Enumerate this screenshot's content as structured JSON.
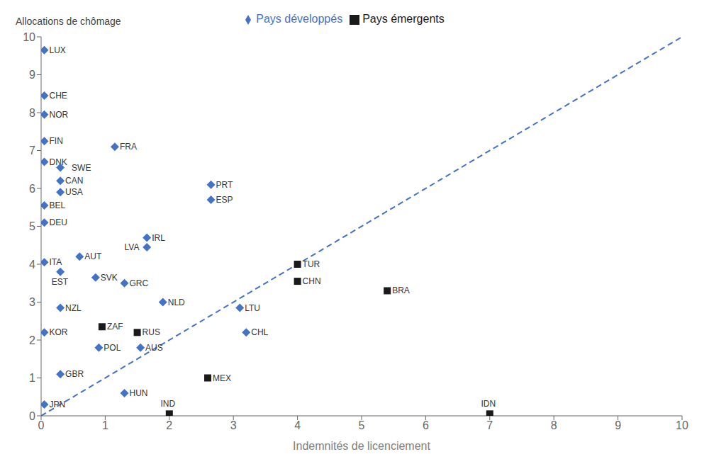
{
  "chart_data": {
    "type": "scatter",
    "xlabel": "Indemnités de licenciement",
    "ylabel": "Allocations de chômage",
    "series": [
      {
        "name": "Pays développés",
        "color": "#4472C4",
        "marker": "diamond",
        "labels": [
          "LUX",
          "CHE",
          "NOR",
          "FIN",
          "FRA",
          "DNK",
          "SWE",
          "CAN",
          "USA",
          "BEL",
          "DEU",
          "IRL",
          "LVA",
          "AUT",
          "ITA",
          "EST",
          "SVK",
          "GRC",
          "NLD",
          "NZL",
          "KOR",
          "POL",
          "GBR",
          "HUN",
          "JPN",
          "PRT",
          "ESP",
          "LTU",
          "CHL",
          "AUS"
        ],
        "x": [
          0.05,
          0.05,
          0.05,
          0.05,
          1.15,
          0.05,
          0.3,
          0.3,
          0.3,
          0.05,
          0.05,
          1.65,
          1.65,
          0.6,
          0.05,
          0.3,
          0.85,
          1.3,
          1.9,
          0.3,
          0.05,
          0.9,
          0.3,
          1.3,
          0.05,
          2.65,
          2.65,
          3.1,
          3.2,
          1.55
        ],
        "y": [
          9.65,
          8.45,
          7.95,
          7.25,
          7.1,
          6.7,
          6.55,
          6.2,
          5.9,
          5.55,
          5.1,
          4.7,
          4.45,
          4.2,
          4.05,
          3.8,
          3.65,
          3.5,
          3.0,
          2.85,
          2.2,
          1.8,
          1.1,
          0.6,
          0.3,
          6.1,
          5.7,
          2.85,
          2.2,
          1.8
        ]
      },
      {
        "name": "Pays émergents",
        "color": "#1a1a1a",
        "marker": "square",
        "labels": [
          "TUR",
          "CHN",
          "BRA",
          "ZAF",
          "RUS",
          "MEX",
          "IND",
          "IDN"
        ],
        "x": [
          4.0,
          4.0,
          5.4,
          0.95,
          1.5,
          2.6,
          2.0,
          7.0
        ],
        "y": [
          4.0,
          3.55,
          3.3,
          2.35,
          2.2,
          1.0,
          0.05,
          0.05
        ]
      }
    ],
    "reference_line": {
      "x": [
        0,
        10
      ],
      "y": [
        0,
        10
      ],
      "color": "#4472C4",
      "line_style": "dashed"
    },
    "xlim": [
      0,
      10
    ],
    "ylim": [
      0,
      10
    ],
    "xticks": [
      0,
      1,
      2,
      3,
      4,
      5,
      6,
      7,
      8,
      9,
      10
    ],
    "yticks": [
      0,
      1,
      2,
      3,
      4,
      5,
      6,
      7,
      8,
      9,
      10
    ],
    "grid": false,
    "legend": "top"
  }
}
